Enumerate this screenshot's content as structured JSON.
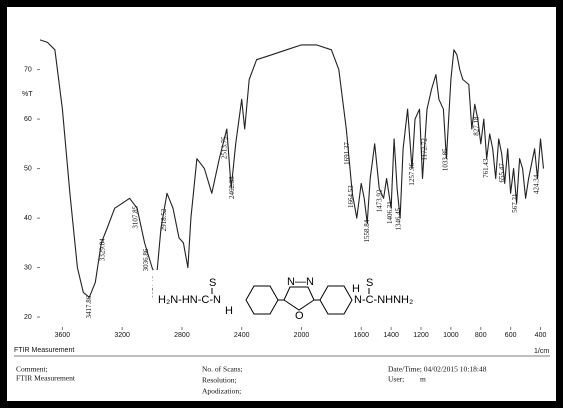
{
  "chart_data": {
    "type": "line",
    "ylabel": "%T",
    "xlabel": "1/cm",
    "subtitle": "FTIR Measurement",
    "xlim": [
      3750,
      350
    ],
    "ylim": [
      18,
      78
    ],
    "xticks": [
      3600,
      3200,
      2800,
      2400,
      2000,
      1600,
      1400,
      1200,
      1000,
      800,
      600,
      400
    ],
    "yticks": [
      20,
      30,
      40,
      50,
      60,
      70
    ],
    "x": [
      3750,
      3700,
      3650,
      3600,
      3550,
      3500,
      3460,
      3420,
      3380,
      3340,
      3300,
      3250,
      3200,
      3150,
      3100,
      3050,
      3000,
      2970,
      2940,
      2900,
      2860,
      2820,
      2790,
      2760,
      2740,
      2700,
      2650,
      2600,
      2550,
      2500,
      2470,
      2440,
      2400,
      2380,
      2350,
      2300,
      2200,
      2100,
      2000,
      1900,
      1800,
      1750,
      1700,
      1660,
      1630,
      1600,
      1580,
      1560,
      1540,
      1510,
      1480,
      1450,
      1430,
      1400,
      1380,
      1360,
      1340,
      1320,
      1290,
      1260,
      1240,
      1210,
      1190,
      1160,
      1130,
      1100,
      1080,
      1050,
      1030,
      1000,
      980,
      960,
      940,
      920,
      880,
      860,
      840,
      820,
      800,
      780,
      760,
      740,
      720,
      700,
      680,
      660,
      640,
      620,
      600,
      580,
      560,
      540,
      520,
      500,
      480,
      460,
      440,
      420,
      400,
      380
    ],
    "series": [
      {
        "name": "FTIR Measurement",
        "color": "#222222",
        "values": [
          76,
          75.5,
          74,
          62,
          45,
          30,
          25,
          24,
          27,
          35,
          38,
          42,
          43,
          44,
          42,
          35,
          30,
          28,
          38,
          45,
          42,
          36,
          35,
          30,
          40,
          52,
          50,
          45,
          52,
          58,
          46,
          55,
          64,
          58,
          68,
          72,
          73,
          74,
          75,
          75,
          74,
          70,
          58,
          45,
          40,
          47,
          44,
          39,
          48,
          55,
          46,
          44,
          48,
          42,
          56,
          46,
          40,
          54,
          62,
          50,
          60,
          62,
          48,
          62,
          66,
          69,
          64,
          62,
          52,
          68,
          74,
          73,
          70,
          68,
          67,
          58,
          63,
          60,
          55,
          60,
          52,
          57,
          54,
          48,
          56,
          53,
          47,
          54,
          45,
          50,
          43,
          52,
          50,
          44,
          48,
          51,
          54,
          48,
          56,
          50
        ]
      }
    ],
    "peak_labels": [
      3417.86,
      3329.84,
      3107.85,
      3036.86,
      2974.13,
      2918.52,
      2513.75,
      2462.33,
      1691.37,
      1664.53,
      1558.84,
      1473.92,
      1406.31,
      1346.45,
      1257.96,
      1172.72,
      1033.85,
      827.18,
      761.43,
      655.47,
      567.21,
      424.34
    ],
    "grid": false
  },
  "structure": {
    "labels": [
      "S",
      "S",
      "H₂N-HN-C-N",
      "H",
      "N—N",
      "O",
      "N-C-NHNH₂",
      "H"
    ]
  },
  "footer": {
    "comment": "Comment;",
    "comment_value": "FTIR Measurement",
    "scans": "No. of Scans;",
    "resolution": "Resolution;",
    "apodization": "Apodization;",
    "datetime": "Date/Time; 04/02/2015 10:18:48",
    "user": "User;",
    "user_value": "m"
  }
}
